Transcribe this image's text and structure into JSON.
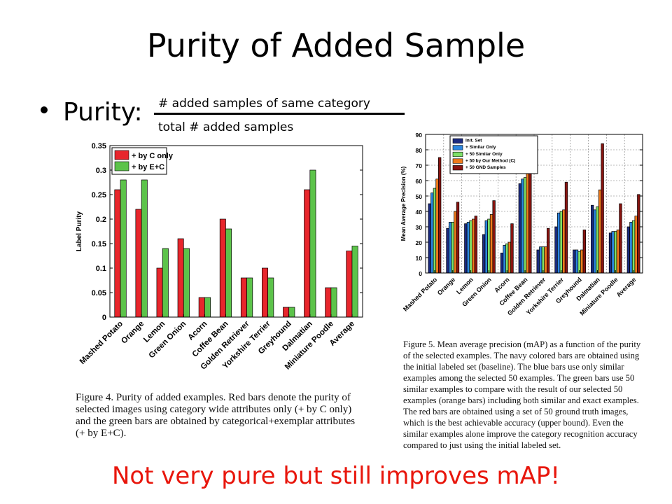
{
  "slide": {
    "title": "Purity of Added Sample",
    "bullet_label": "Purity:",
    "fraction_numerator": "# added samples of same category",
    "fraction_denominator": "total # added samples",
    "bottom_note": "Not very pure but still improves mAP!"
  },
  "captions": {
    "figure4": "Figure 4. Purity of added examples. Red bars denote the purity of selected images using category wide attributes only (+ by C only) and the green bars are obtained by categorical+exemplar attributes (+ by E+C).",
    "figure5": "Figure 5. Mean average precision (mAP) as a function of the purity of the selected examples. The navy colored bars are obtained using the initial labeled set (baseline). The blue bars use only similar examples among the selected 50 examples. The green bars use 50 similar examples to compare with the result of our selected 50 examples (orange bars) including both similar and exact examples. The red bars are obtained using a set of 50 ground truth images, which is the best achievable accuracy (upper bound). Even the similar examples alone improve the category recognition accuracy compared to just using the initial labeled set."
  },
  "chart_data": [
    {
      "type": "bar",
      "ylabel": "Label Purity",
      "xlabel": "",
      "ylim": [
        0,
        0.35
      ],
      "yticks": [
        "0",
        "0.05",
        "0.1",
        "0.15",
        "0.2",
        "0.25",
        "0.3",
        "0.35"
      ],
      "legend_position": "top-left",
      "grid": false,
      "categories": [
        "Mashed Potato",
        "Orange",
        "Lemon",
        "Green Onion",
        "Acorn",
        "Coffee Bean",
        "Golden Retriever",
        "Yorkshire Terrier",
        "Greyhound",
        "Dalmatian",
        "Miniature Poodle",
        "Average"
      ],
      "series": [
        {
          "name": "+ by C only",
          "color": "#e8262c",
          "values": [
            0.26,
            0.22,
            0.1,
            0.16,
            0.04,
            0.2,
            0.08,
            0.1,
            0.02,
            0.26,
            0.06,
            0.135
          ]
        },
        {
          "name": "+ by E+C",
          "color": "#5cc34a",
          "values": [
            0.28,
            0.28,
            0.14,
            0.14,
            0.04,
            0.18,
            0.08,
            0.08,
            0.02,
            0.3,
            0.06,
            0.145
          ]
        }
      ]
    },
    {
      "type": "bar",
      "ylabel": "Mean Average Precision (%)",
      "xlabel": "",
      "ylim": [
        0,
        90
      ],
      "yticks": [
        "0",
        "10",
        "20",
        "30",
        "40",
        "50",
        "60",
        "70",
        "80",
        "90"
      ],
      "legend_position": "top-left",
      "grid": true,
      "categories": [
        "Mashed Potato",
        "Orange",
        "Lemon",
        "Green Onion",
        "Acorn",
        "Coffee Bean",
        "Golden Retriever",
        "Yorkshire Terrier",
        "Greyhound",
        "Dalmatian",
        "Miniature Poodle",
        "Average"
      ],
      "series": [
        {
          "name": "Init. Set",
          "color": "#1a2a80",
          "values": [
            45,
            29,
            32,
            25,
            13,
            58,
            15,
            30,
            15,
            44,
            26,
            30
          ]
        },
        {
          "name": "+ Similar Only",
          "color": "#2b86e0",
          "values": [
            52,
            33,
            33,
            34,
            18,
            61,
            17,
            39,
            15,
            41,
            27,
            33
          ]
        },
        {
          "name": "+ 50 Similar Only",
          "color": "#7ee068",
          "values": [
            55,
            33,
            34,
            35,
            19,
            62,
            17,
            40,
            14,
            43,
            27,
            34
          ]
        },
        {
          "name": "+ 50 by Our Method (C)",
          "color": "#f07b1c",
          "values": [
            61,
            40,
            35,
            38,
            20,
            67,
            17,
            41,
            15,
            54,
            28,
            37
          ]
        },
        {
          "name": "+ 50 GND Samples",
          "color": "#8a1410",
          "values": [
            75,
            46,
            37,
            47,
            32,
            81,
            29,
            59,
            28,
            84,
            45,
            51
          ]
        }
      ]
    }
  ]
}
